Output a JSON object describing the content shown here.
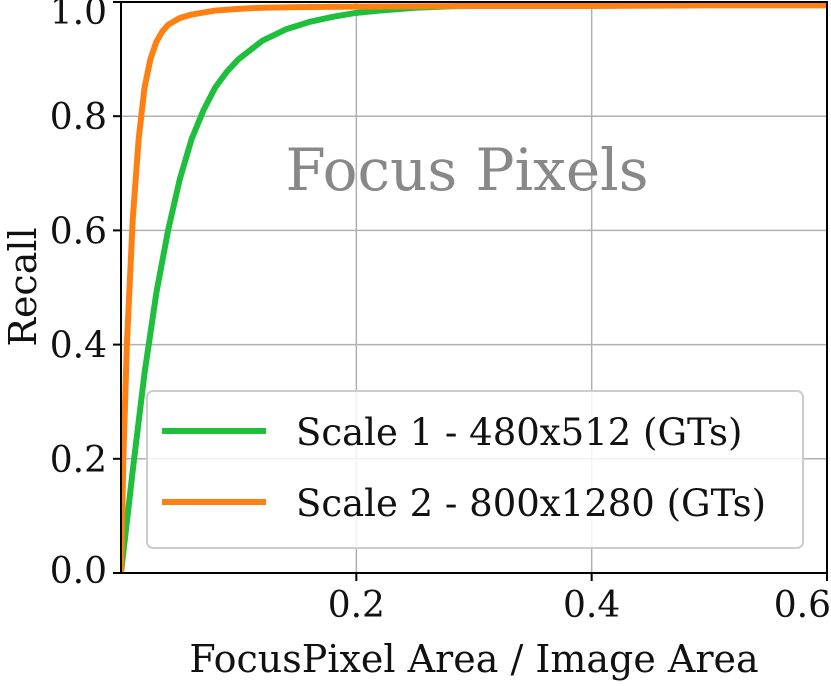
{
  "chart_data": {
    "type": "line",
    "title": "",
    "xlabel": "FocusPixel Area / Image Area",
    "ylabel": "Recall",
    "xlim": [
      0.0,
      0.6
    ],
    "ylim": [
      0.0,
      1.0
    ],
    "x_ticks": [
      0.2,
      0.4,
      0.6
    ],
    "x_tick_labels": [
      "0.2",
      "0.4",
      "0.6"
    ],
    "y_ticks": [
      0.0,
      0.2,
      0.4,
      0.6,
      0.8,
      1.0
    ],
    "y_tick_labels": [
      "0.0",
      "0.2",
      "0.4",
      "0.6",
      "0.8",
      "1.0"
    ],
    "grid": true,
    "legend_position": "lower-right",
    "annotation": {
      "text": "Focus Pixels",
      "color": "#888888"
    },
    "series": [
      {
        "name": "Scale 1 - 480x512 (GTs)",
        "color": "#1fbf3d",
        "x": [
          0.0,
          0.005,
          0.01,
          0.02,
          0.03,
          0.04,
          0.05,
          0.06,
          0.07,
          0.08,
          0.09,
          0.1,
          0.12,
          0.14,
          0.16,
          0.18,
          0.2,
          0.22,
          0.25,
          0.3,
          0.35,
          0.4,
          0.5,
          0.6
        ],
        "y": [
          0.0,
          0.09,
          0.18,
          0.35,
          0.49,
          0.6,
          0.69,
          0.76,
          0.81,
          0.85,
          0.878,
          0.9,
          0.932,
          0.952,
          0.965,
          0.974,
          0.981,
          0.985,
          0.99,
          0.994,
          0.996,
          0.997,
          0.998,
          0.999
        ]
      },
      {
        "name": "Scale 2 - 800x1280 (GTs)",
        "color": "#ff8012",
        "x": [
          0.0,
          0.002,
          0.005,
          0.01,
          0.015,
          0.02,
          0.025,
          0.03,
          0.035,
          0.04,
          0.05,
          0.06,
          0.08,
          0.1,
          0.12,
          0.15,
          0.2,
          0.3,
          0.4,
          0.5,
          0.6
        ],
        "y": [
          0.0,
          0.2,
          0.4,
          0.62,
          0.76,
          0.85,
          0.9,
          0.93,
          0.948,
          0.96,
          0.972,
          0.978,
          0.985,
          0.988,
          0.99,
          0.991,
          0.992,
          0.993,
          0.993,
          0.994,
          0.994
        ]
      }
    ]
  }
}
